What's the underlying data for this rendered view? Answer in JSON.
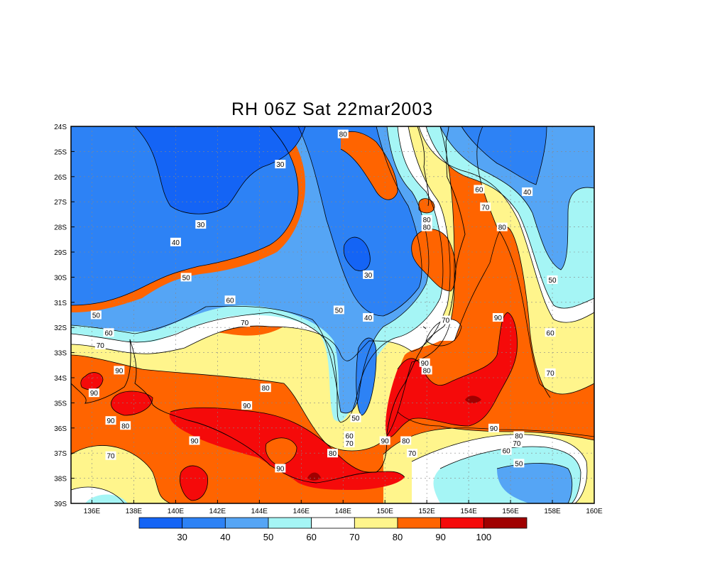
{
  "title": "RH 06Z Sat 22mar2003",
  "map": {
    "lat_labels": [
      "24S",
      "25S",
      "26S",
      "27S",
      "28S",
      "29S",
      "30S",
      "31S",
      "32S",
      "33S",
      "34S",
      "35S",
      "36S",
      "37S",
      "38S",
      "39S"
    ],
    "lon_labels": [
      "136E",
      "138E",
      "140E",
      "142E",
      "144E",
      "146E",
      "148E",
      "150E",
      "152E",
      "154E",
      "156E",
      "158E",
      "160E"
    ],
    "contour_labels": [
      {
        "t": "30",
        "lon": 145.0,
        "lat": -25.5
      },
      {
        "t": "30",
        "lon": 141.2,
        "lat": -27.9
      },
      {
        "t": "30",
        "lon": 149.2,
        "lat": -29.9
      },
      {
        "t": "40",
        "lon": 140.0,
        "lat": -28.6
      },
      {
        "t": "40",
        "lon": 149.2,
        "lat": -31.6
      },
      {
        "t": "40",
        "lon": 156.8,
        "lat": -26.6
      },
      {
        "t": "50",
        "lon": 140.5,
        "lat": -30.0
      },
      {
        "t": "50",
        "lon": 136.2,
        "lat": -31.5
      },
      {
        "t": "50",
        "lon": 147.8,
        "lat": -31.3
      },
      {
        "t": "50",
        "lon": 148.6,
        "lat": -35.6
      },
      {
        "t": "50",
        "lon": 156.4,
        "lat": -37.4
      },
      {
        "t": "50",
        "lon": 158.0,
        "lat": -30.1
      },
      {
        "t": "60",
        "lon": 142.6,
        "lat": -30.9
      },
      {
        "t": "60",
        "lon": 136.8,
        "lat": -32.2
      },
      {
        "t": "60",
        "lon": 148.3,
        "lat": -36.3
      },
      {
        "t": "60",
        "lon": 155.8,
        "lat": -36.9
      },
      {
        "t": "60",
        "lon": 154.5,
        "lat": -26.5
      },
      {
        "t": "60",
        "lon": 157.9,
        "lat": -32.2
      },
      {
        "t": "70",
        "lon": 143.3,
        "lat": -31.8
      },
      {
        "t": "70",
        "lon": 136.4,
        "lat": -32.7
      },
      {
        "t": "70",
        "lon": 136.9,
        "lat": -37.1
      },
      {
        "t": "70",
        "lon": 148.3,
        "lat": -36.6
      },
      {
        "t": "70",
        "lon": 152.9,
        "lat": -31.7
      },
      {
        "t": "70",
        "lon": 154.8,
        "lat": -27.2
      },
      {
        "t": "70",
        "lon": 156.3,
        "lat": -36.6
      },
      {
        "t": "70",
        "lon": 151.3,
        "lat": -37.0
      },
      {
        "t": "70",
        "lon": 157.9,
        "lat": -33.8
      },
      {
        "t": "80",
        "lon": 148.0,
        "lat": -24.3
      },
      {
        "t": "80",
        "lon": 152.0,
        "lat": -27.7
      },
      {
        "t": "80",
        "lon": 152.0,
        "lat": -28.0
      },
      {
        "t": "80",
        "lon": 152.0,
        "lat": -33.7
      },
      {
        "t": "80",
        "lon": 155.6,
        "lat": -28.0
      },
      {
        "t": "80",
        "lon": 144.3,
        "lat": -34.4
      },
      {
        "t": "80",
        "lon": 137.6,
        "lat": -35.9
      },
      {
        "t": "80",
        "lon": 147.5,
        "lat": -37.0
      },
      {
        "t": "80",
        "lon": 151.0,
        "lat": -36.5
      },
      {
        "t": "80",
        "lon": 156.4,
        "lat": -36.3
      },
      {
        "t": "90",
        "lon": 137.3,
        "lat": -33.7
      },
      {
        "t": "90",
        "lon": 136.1,
        "lat": -34.6
      },
      {
        "t": "90",
        "lon": 136.9,
        "lat": -35.7
      },
      {
        "t": "90",
        "lon": 143.4,
        "lat": -35.1
      },
      {
        "t": "90",
        "lon": 140.9,
        "lat": -36.5
      },
      {
        "t": "90",
        "lon": 145.0,
        "lat": -37.6
      },
      {
        "t": "90",
        "lon": 150.0,
        "lat": -36.5
      },
      {
        "t": "90",
        "lon": 151.9,
        "lat": -33.4
      },
      {
        "t": "90",
        "lon": 155.4,
        "lat": -31.6
      },
      {
        "t": "90",
        "lon": 155.2,
        "lat": -36.0
      }
    ]
  },
  "colorbar": {
    "labels": [
      "30",
      "40",
      "50",
      "60",
      "70",
      "80",
      "90",
      "100"
    ],
    "colors": [
      "#1464f5",
      "#2d82f5",
      "#55a5f5",
      "#a5f5f5",
      "#ffffff",
      "#fff58c",
      "#ff6400",
      "#f50a0a",
      "#a00000"
    ]
  }
}
